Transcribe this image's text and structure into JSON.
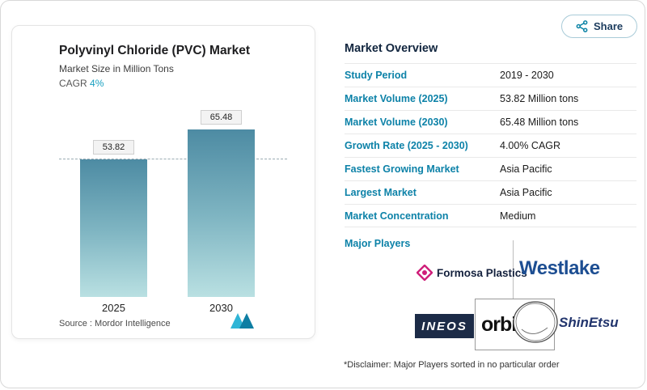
{
  "header": {
    "share_button": "Share"
  },
  "chart_card": {
    "title": "Polyvinyl Chloride (PVC) Market",
    "subtitle": "Market Size in Million Tons",
    "cagr_label": "CAGR",
    "cagr_value": "4%",
    "source_label": "Source :",
    "source_name": "Mordor Intelligence"
  },
  "chart_data": {
    "type": "bar",
    "title": "Polyvinyl Chloride (PVC) Market",
    "subtitle": "Market Size in Million Tons",
    "categories": [
      "2025",
      "2030"
    ],
    "values": [
      53.82,
      65.48
    ],
    "value_labels": [
      "53.82",
      "65.48"
    ],
    "ylabel": "Million Tons",
    "ylim": [
      0,
      72
    ],
    "grid": false,
    "legend": "none",
    "annotations": [
      "CAGR 4%",
      "dashed reference line at first bar value 53.82"
    ],
    "bar_gradient_top": "#4d8ba3",
    "bar_gradient_bottom": "#b9e0e2"
  },
  "overview": {
    "title": "Market Overview",
    "rows": [
      {
        "label": "Study Period",
        "value": "2019 - 2030"
      },
      {
        "label": "Market Volume (2025)",
        "value": "53.82 Million tons"
      },
      {
        "label": "Market Volume (2030)",
        "value": "65.48 Million tons"
      },
      {
        "label": "Growth Rate (2025 - 2030)",
        "value": "4.00% CAGR"
      },
      {
        "label": "Fastest Growing Market",
        "value": "Asia Pacific"
      },
      {
        "label": "Largest Market",
        "value": "Asia Pacific"
      },
      {
        "label": "Market Concentration",
        "value": "Medium"
      }
    ],
    "major_players_label": "Major Players",
    "players": [
      {
        "name": "Formosa Plastics"
      },
      {
        "name": "Westlake"
      },
      {
        "name": "INEOS"
      },
      {
        "name": "orbia"
      },
      {
        "name": "ShinEtsu"
      }
    ],
    "disclaimer": "*Disclaimer: Major Players sorted in no particular order"
  },
  "colors": {
    "accent_teal": "#0d82a8",
    "navy": "#12263f",
    "westlake_blue": "#1d4e92",
    "formosa_pink": "#cf1f7a",
    "ineos_navy": "#1c2b47"
  }
}
